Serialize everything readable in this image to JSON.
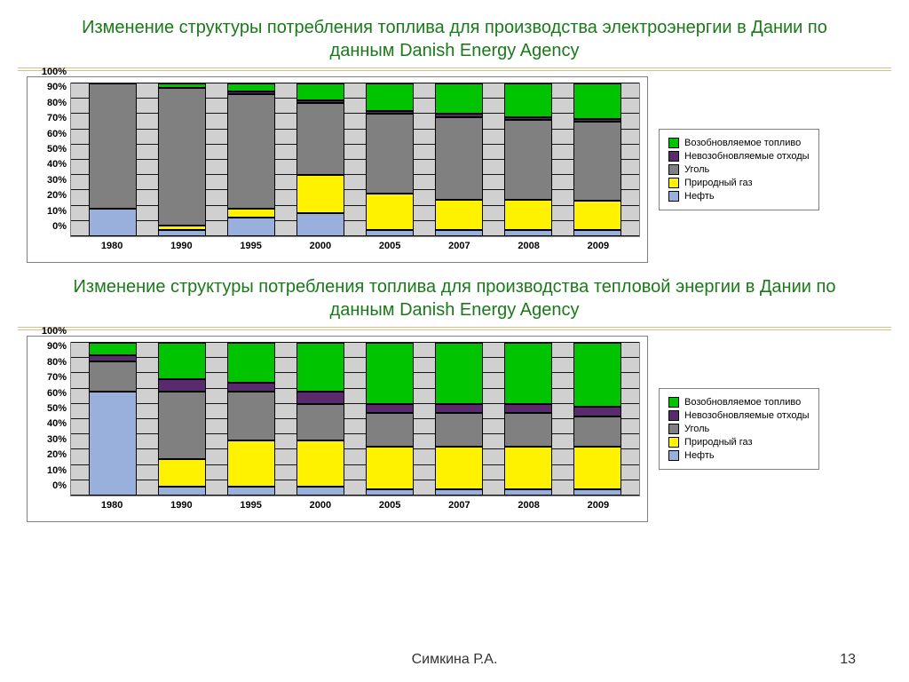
{
  "colors": {
    "oil": "#9ab0dc",
    "gas": "#fff200",
    "coal": "#808080",
    "nonrenew_waste": "#5a2a6e",
    "renewable": "#00c400",
    "grid_bg": "#d0d0d0",
    "gridline": "#000000",
    "title": "#1a7a1a"
  },
  "legend_items": [
    {
      "key": "renewable",
      "label": "Возобновляемое топливо"
    },
    {
      "key": "nonrenew_waste",
      "label": "Невозобновляемые отходы"
    },
    {
      "key": "coal",
      "label": "Уголь"
    },
    {
      "key": "gas",
      "label": "Природный газ"
    },
    {
      "key": "oil",
      "label": "Нефть"
    }
  ],
  "chart1": {
    "title": "Изменение структуры потребления топлива для производства электроэнергии в Дании по данным Danish Energy Agency",
    "type": "stacked-bar-100",
    "ylim": [
      0,
      100
    ],
    "ytick_step": 10,
    "categories": [
      "1980",
      "1990",
      "1995",
      "2000",
      "2005",
      "2007",
      "2008",
      "2009"
    ],
    "series_order": [
      "oil",
      "gas",
      "coal",
      "nonrenew_waste",
      "renewable"
    ],
    "stacks": [
      {
        "oil": 18,
        "gas": 0,
        "coal": 82,
        "nonrenew_waste": 0,
        "renewable": 0
      },
      {
        "oil": 4,
        "gas": 3,
        "coal": 90,
        "nonrenew_waste": 0,
        "renewable": 3
      },
      {
        "oil": 12,
        "gas": 6,
        "coal": 75,
        "nonrenew_waste": 2,
        "renewable": 5
      },
      {
        "oil": 15,
        "gas": 25,
        "coal": 47,
        "nonrenew_waste": 2,
        "renewable": 11
      },
      {
        "oil": 4,
        "gas": 24,
        "coal": 52,
        "nonrenew_waste": 2,
        "renewable": 18
      },
      {
        "oil": 4,
        "gas": 20,
        "coal": 54,
        "nonrenew_waste": 2,
        "renewable": 20
      },
      {
        "oil": 4,
        "gas": 20,
        "coal": 52,
        "nonrenew_waste": 2,
        "renewable": 22
      },
      {
        "oil": 4,
        "gas": 19,
        "coal": 52,
        "nonrenew_waste": 2,
        "renewable": 23
      }
    ]
  },
  "chart2": {
    "title": "Изменение структуры потребления топлива для производства тепловой энергии в Дании по данным Danish Energy Agency",
    "type": "stacked-bar-100",
    "ylim": [
      0,
      100
    ],
    "ytick_step": 10,
    "categories": [
      "1980",
      "1990",
      "1995",
      "2000",
      "2005",
      "2007",
      "2008",
      "2009"
    ],
    "series_order": [
      "oil",
      "gas",
      "coal",
      "nonrenew_waste",
      "renewable"
    ],
    "stacks": [
      {
        "oil": 68,
        "gas": 0,
        "coal": 20,
        "nonrenew_waste": 4,
        "renewable": 8
      },
      {
        "oil": 6,
        "gas": 18,
        "coal": 44,
        "nonrenew_waste": 8,
        "renewable": 24
      },
      {
        "oil": 6,
        "gas": 30,
        "coal": 32,
        "nonrenew_waste": 6,
        "renewable": 26
      },
      {
        "oil": 6,
        "gas": 30,
        "coal": 24,
        "nonrenew_waste": 8,
        "renewable": 32
      },
      {
        "oil": 4,
        "gas": 28,
        "coal": 22,
        "nonrenew_waste": 6,
        "renewable": 40
      },
      {
        "oil": 4,
        "gas": 28,
        "coal": 22,
        "nonrenew_waste": 6,
        "renewable": 40
      },
      {
        "oil": 4,
        "gas": 28,
        "coal": 22,
        "nonrenew_waste": 6,
        "renewable": 40
      },
      {
        "oil": 4,
        "gas": 28,
        "coal": 20,
        "nonrenew_waste": 6,
        "renewable": 42
      }
    ]
  },
  "footer": {
    "author": "Симкина Р.А.",
    "page": "13"
  }
}
